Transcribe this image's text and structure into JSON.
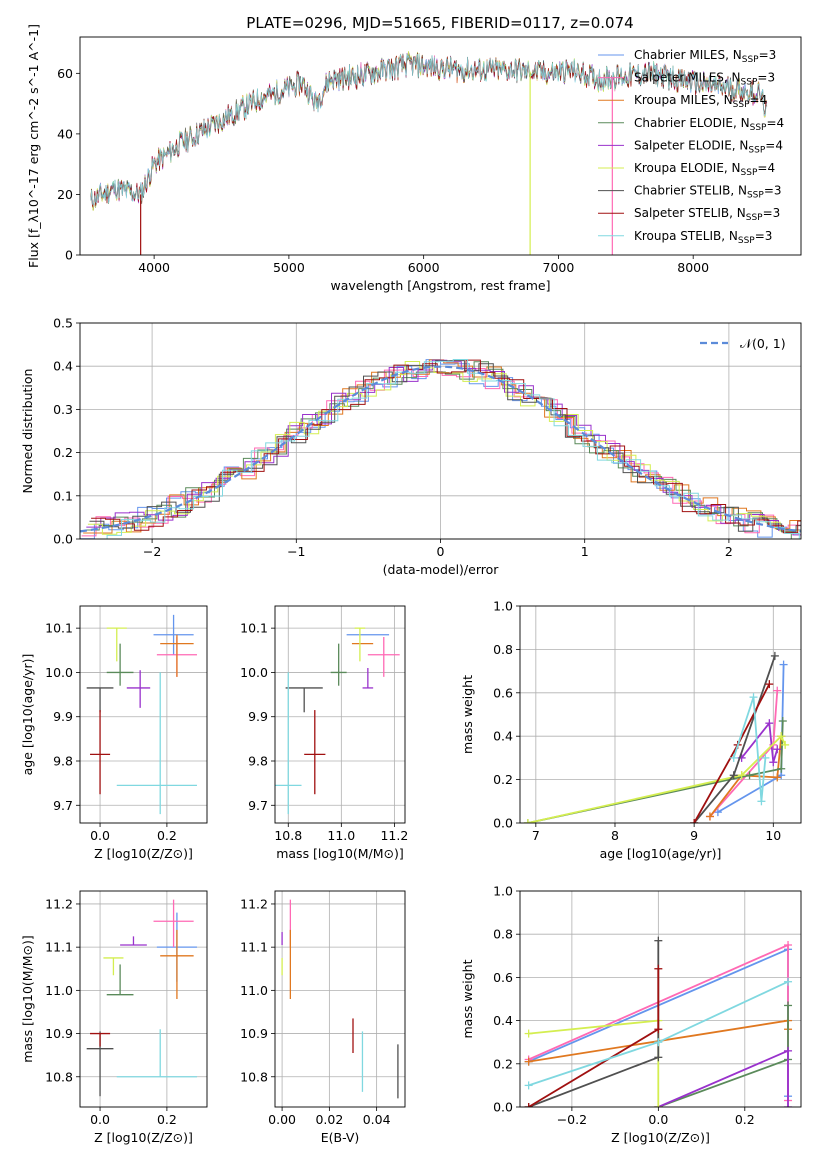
{
  "title": "PLATE=0296, MJD=51665, FIBERID=0117, z=0.074",
  "colors": {
    "chabrier_miles": "#6495ed",
    "salpeter_miles": "#ff69b4",
    "kroupa_miles": "#e07820",
    "chabrier_elodie": "#5a8a5a",
    "salpeter_elodie": "#9932cc",
    "kroupa_elodie": "#d4ee50",
    "chabrier_stelib": "#505050",
    "salpeter_stelib": "#a01010",
    "kroupa_stelib": "#80d8e0",
    "gaussian": "#5b8bd9"
  },
  "chart_data": [
    {
      "id": "spectrum",
      "type": "line",
      "xlabel": "wavelength [Angstrom, rest frame]",
      "ylabel": "Flux [f_λ10^-17 erg cm^-2 s^-1 A^-1]",
      "xlim": [
        3450,
        8800
      ],
      "ylim": [
        0,
        72
      ],
      "xticks": [
        4000,
        5000,
        6000,
        7000,
        8000
      ],
      "yticks": [
        0,
        20,
        40,
        60
      ],
      "grid": false,
      "legend_position": "top-right",
      "legend": [
        "Chabrier MILES, N_SSP=3",
        "Salpeter MILES, N_SSP=3",
        "Kroupa MILES, N_SSP=4",
        "Chabrier ELODIE, N_SSP=4",
        "Salpeter ELODIE, N_SSP=4",
        "Kroupa ELODIE, N_SSP=4",
        "Chabrier STELIB, N_SSP=3",
        "Salpeter STELIB, N_SSP=3",
        "Kroupa STELIB, N_SSP=3"
      ],
      "continuum": [
        [
          3530,
          18
        ],
        [
          3700,
          22
        ],
        [
          3900,
          20
        ],
        [
          4000,
          30
        ],
        [
          4200,
          37
        ],
        [
          4400,
          42
        ],
        [
          4600,
          47
        ],
        [
          4800,
          52
        ],
        [
          5000,
          55
        ],
        [
          5100,
          57
        ],
        [
          5200,
          50
        ],
        [
          5300,
          58
        ],
        [
          5500,
          59
        ],
        [
          5700,
          61
        ],
        [
          5900,
          63
        ],
        [
          6100,
          62
        ],
        [
          6300,
          61
        ],
        [
          6500,
          61
        ],
        [
          6700,
          61
        ],
        [
          6900,
          60
        ],
        [
          7100,
          61
        ],
        [
          7300,
          58
        ],
        [
          7500,
          59
        ],
        [
          7700,
          60
        ],
        [
          7900,
          58
        ],
        [
          8100,
          56
        ],
        [
          8300,
          55
        ],
        [
          8500,
          53
        ],
        [
          8550,
          46
        ]
      ],
      "dips": [
        {
          "x": 3900,
          "to": 0,
          "series": "salpeter_stelib"
        },
        {
          "x": 6790,
          "to": 0,
          "series": "kroupa_elodie"
        },
        {
          "x": 7400,
          "to": 0,
          "series": "salpeter_miles"
        }
      ]
    },
    {
      "id": "residual-histogram",
      "type": "histogram",
      "xlabel": "(data-model)/error",
      "ylabel": "Normed distribution",
      "xlim": [
        -2.5,
        2.5
      ],
      "ylim": [
        0,
        0.5
      ],
      "xticks": [
        -2,
        -1,
        0,
        1,
        2
      ],
      "yticks": [
        0.0,
        0.1,
        0.2,
        0.3,
        0.4,
        0.5
      ],
      "grid": true,
      "legend_position": "top-right",
      "legend": [
        "N(0,1)"
      ],
      "bin_width": 0.1,
      "gaussian": {
        "mean": 0,
        "sigma": 1
      }
    },
    {
      "id": "age-vs-Z",
      "type": "errorbar",
      "xlabel": "Z [log10(Z/Z⊙)]",
      "ylabel": "age  [log10(age/yr)]",
      "xlim": [
        -0.06,
        0.32
      ],
      "ylim": [
        9.66,
        10.15
      ],
      "xticks": [
        0.0,
        0.2
      ],
      "yticks": [
        9.7,
        9.8,
        9.9,
        10.0,
        10.1
      ],
      "grid": true,
      "points": [
        {
          "series": "chabrier_miles",
          "x": 0.22,
          "xerr": [
            0.06,
            0.06
          ],
          "y": 10.085,
          "yerr": [
            0.045,
            0.045
          ]
        },
        {
          "series": "salpeter_miles",
          "x": 0.23,
          "xerr": [
            0.06,
            0.06
          ],
          "y": 10.04,
          "yerr": [
            0.05,
            0.04
          ]
        },
        {
          "series": "kroupa_miles",
          "x": 0.23,
          "xerr": [
            0.05,
            0.05
          ],
          "y": 10.065,
          "yerr": [
            0.075,
            0.02
          ]
        },
        {
          "series": "chabrier_elodie",
          "x": 0.06,
          "xerr": [
            0.04,
            0.04
          ],
          "y": 10.0,
          "yerr": [
            0.03,
            0.065
          ]
        },
        {
          "series": "salpeter_elodie",
          "x": 0.12,
          "xerr": [
            0.04,
            0.03
          ],
          "y": 9.965,
          "yerr": [
            0.045,
            0.04
          ]
        },
        {
          "series": "kroupa_elodie",
          "x": 0.05,
          "xerr": [
            0.03,
            0.03
          ],
          "y": 10.1,
          "yerr": [
            0.075,
            0.0
          ]
        },
        {
          "series": "chabrier_stelib",
          "x": 0.0,
          "xerr": [
            0.04,
            0.04
          ],
          "y": 9.965,
          "yerr": [
            0.055,
            0.0
          ]
        },
        {
          "series": "salpeter_stelib",
          "x": 0.0,
          "xerr": [
            0.03,
            0.03
          ],
          "y": 9.815,
          "yerr": [
            0.09,
            0.1
          ]
        },
        {
          "series": "kroupa_stelib",
          "x": 0.18,
          "xerr": [
            0.13,
            0.11
          ],
          "y": 9.745,
          "yerr": [
            0.065,
            0.255
          ]
        }
      ]
    },
    {
      "id": "age-vs-mass",
      "type": "errorbar",
      "xlabel": "mass [log10(M/M⊙)]",
      "ylabel": "",
      "xlim": [
        10.75,
        11.24
      ],
      "ylim": [
        9.66,
        10.15
      ],
      "xticks": [
        10.8,
        11.0,
        11.2
      ],
      "yticks": [
        9.7,
        9.8,
        9.9,
        10.0,
        10.1
      ],
      "grid": true,
      "points": [
        {
          "series": "chabrier_miles",
          "x": 11.1,
          "xerr": [
            0.08,
            0.08
          ],
          "y": 10.085,
          "yerr": [
            0.0,
            0.0
          ]
        },
        {
          "series": "salpeter_miles",
          "x": 11.16,
          "xerr": [
            0.06,
            0.06
          ],
          "y": 10.04,
          "yerr": [
            0.05,
            0.04
          ]
        },
        {
          "series": "kroupa_miles",
          "x": 11.08,
          "xerr": [
            0.04,
            0.04
          ],
          "y": 10.065,
          "yerr": [
            0.0,
            0.0
          ]
        },
        {
          "series": "chabrier_elodie",
          "x": 10.99,
          "xerr": [
            0.03,
            0.03
          ],
          "y": 10.0,
          "yerr": [
            0.03,
            0.065
          ]
        },
        {
          "series": "salpeter_elodie",
          "x": 11.1,
          "xerr": [
            0.02,
            0.02
          ],
          "y": 9.965,
          "yerr": [
            0.0,
            0.045
          ]
        },
        {
          "series": "kroupa_elodie",
          "x": 11.07,
          "xerr": [
            0.02,
            0.02
          ],
          "y": 10.1,
          "yerr": [
            0.075,
            0.0
          ]
        },
        {
          "series": "chabrier_stelib",
          "x": 10.86,
          "xerr": [
            0.07,
            0.07
          ],
          "y": 9.965,
          "yerr": [
            0.055,
            0.0
          ]
        },
        {
          "series": "salpeter_stelib",
          "x": 10.9,
          "xerr": [
            0.04,
            0.04
          ],
          "y": 9.815,
          "yerr": [
            0.09,
            0.1
          ]
        },
        {
          "series": "kroupa_stelib",
          "x": 10.8,
          "xerr": [
            0.05,
            0.05
          ],
          "y": 9.745,
          "yerr": [
            0.065,
            0.255
          ]
        }
      ]
    },
    {
      "id": "mass-weight-vs-age",
      "type": "line",
      "xlabel": "age  [log10(age/yr)]",
      "ylabel": "mass weight",
      "xlim": [
        6.8,
        10.35
      ],
      "ylim": [
        0,
        1.0
      ],
      "xticks": [
        7,
        8,
        9,
        10
      ],
      "yticks": [
        0.0,
        0.2,
        0.4,
        0.6,
        0.8,
        1.0
      ],
      "grid": true,
      "series": [
        {
          "key": "chabrier_miles",
          "x": [
            9.3,
            10.1,
            10.13
          ],
          "y": [
            0.05,
            0.22,
            0.73
          ]
        },
        {
          "key": "salpeter_miles",
          "x": [
            9.2,
            10.0,
            10.05
          ],
          "y": [
            0.03,
            0.36,
            0.61
          ]
        },
        {
          "key": "kroupa_miles",
          "x": [
            9.2,
            9.6,
            10.05,
            10.1
          ],
          "y": [
            0.03,
            0.22,
            0.21,
            0.4
          ]
        },
        {
          "key": "chabrier_elodie",
          "x": [
            6.9,
            9.7,
            10.1,
            10.12
          ],
          "y": [
            0.0,
            0.22,
            0.25,
            0.47
          ]
        },
        {
          "key": "salpeter_elodie",
          "x": [
            9.6,
            9.95,
            10.0,
            10.05
          ],
          "y": [
            0.3,
            0.46,
            0.28,
            0.34
          ]
        },
        {
          "key": "kroupa_elodie",
          "x": [
            6.9,
            9.6,
            10.1,
            10.15
          ],
          "y": [
            0.0,
            0.22,
            0.4,
            0.36
          ]
        },
        {
          "key": "chabrier_stelib",
          "x": [
            9.0,
            9.5,
            10.02
          ],
          "y": [
            0.0,
            0.22,
            0.77
          ]
        },
        {
          "key": "salpeter_stelib",
          "x": [
            9.0,
            9.55,
            9.95
          ],
          "y": [
            0.0,
            0.36,
            0.64
          ]
        },
        {
          "key": "kroupa_stelib",
          "x": [
            9.5,
            9.75,
            9.85,
            9.9
          ],
          "y": [
            0.3,
            0.58,
            0.1,
            0.3
          ]
        }
      ]
    },
    {
      "id": "mass-vs-Z",
      "type": "errorbar",
      "xlabel": "Z [log10(Z/Z⊙)]",
      "ylabel": "mass [log10(M/M⊙)]",
      "xlim": [
        -0.06,
        0.32
      ],
      "ylim": [
        10.73,
        11.23
      ],
      "xticks": [
        0.0,
        0.2
      ],
      "yticks": [
        10.8,
        10.9,
        11.0,
        11.1,
        11.2
      ],
      "grid": true,
      "points": [
        {
          "series": "chabrier_miles",
          "x": 0.23,
          "xerr": [
            0.06,
            0.06
          ],
          "y": 11.1,
          "yerr": [
            0.08,
            0.08
          ]
        },
        {
          "series": "salpeter_miles",
          "x": 0.22,
          "xerr": [
            0.06,
            0.06
          ],
          "y": 11.16,
          "yerr": [
            0.06,
            0.05
          ]
        },
        {
          "series": "kroupa_miles",
          "x": 0.23,
          "xerr": [
            0.05,
            0.05
          ],
          "y": 11.08,
          "yerr": [
            0.1,
            0.06
          ]
        },
        {
          "series": "chabrier_elodie",
          "x": 0.06,
          "xerr": [
            0.04,
            0.04
          ],
          "y": 10.99,
          "yerr": [
            0.0,
            0.07
          ]
        },
        {
          "series": "salpeter_elodie",
          "x": 0.1,
          "xerr": [
            0.04,
            0.04
          ],
          "y": 11.105,
          "yerr": [
            0.0,
            0.02
          ]
        },
        {
          "series": "kroupa_elodie",
          "x": 0.04,
          "xerr": [
            0.03,
            0.03
          ],
          "y": 11.075,
          "yerr": [
            0.04,
            0.0
          ]
        },
        {
          "series": "chabrier_stelib",
          "x": 0.0,
          "xerr": [
            0.04,
            0.04
          ],
          "y": 10.865,
          "yerr": [
            0.11,
            0.04
          ]
        },
        {
          "series": "salpeter_stelib",
          "x": 0.0,
          "xerr": [
            0.03,
            0.03
          ],
          "y": 10.9,
          "yerr": [
            0.03,
            0.0
          ]
        },
        {
          "series": "kroupa_stelib",
          "x": 0.18,
          "xerr": [
            0.13,
            0.11
          ],
          "y": 10.8,
          "yerr": [
            0.0,
            0.11
          ]
        }
      ]
    },
    {
      "id": "mass-vs-EBV",
      "type": "errorbar",
      "xlabel": "E(B-V)",
      "ylabel": "",
      "xlim": [
        -0.003,
        0.052
      ],
      "ylim": [
        10.73,
        11.23
      ],
      "xticks": [
        0.0,
        0.02,
        0.04
      ],
      "yticks": [
        10.8,
        10.9,
        11.0,
        11.1,
        11.2
      ],
      "grid": true,
      "points": [
        {
          "series": "chabrier_miles",
          "x": 0.0,
          "xerr": [
            0,
            0
          ],
          "y": 11.1,
          "yerr": [
            0.0,
            0.0
          ]
        },
        {
          "series": "salpeter_miles",
          "x": 0.0035,
          "xerr": [
            0,
            0
          ],
          "y": 11.16,
          "yerr": [
            0.06,
            0.05
          ]
        },
        {
          "series": "kroupa_miles",
          "x": 0.0035,
          "xerr": [
            0,
            0
          ],
          "y": 11.08,
          "yerr": [
            0.1,
            0.06
          ]
        },
        {
          "series": "chabrier_elodie",
          "x": 0.0,
          "xerr": [
            0,
            0
          ],
          "y": 10.99,
          "yerr": [
            0.0,
            0.0
          ]
        },
        {
          "series": "salpeter_elodie",
          "x": 0.0,
          "xerr": [
            0,
            0
          ],
          "y": 11.105,
          "yerr": [
            0.0,
            0.03
          ]
        },
        {
          "series": "kroupa_elodie",
          "x": 0.0,
          "xerr": [
            0,
            0
          ],
          "y": 11.075,
          "yerr": [
            0.04,
            0.0
          ]
        },
        {
          "series": "chabrier_stelib",
          "x": 0.049,
          "xerr": [
            0,
            0
          ],
          "y": 10.81,
          "yerr": [
            0.06,
            0.065
          ]
        },
        {
          "series": "salpeter_stelib",
          "x": 0.03,
          "xerr": [
            0,
            0
          ],
          "y": 10.895,
          "yerr": [
            0.04,
            0.04
          ]
        },
        {
          "series": "kroupa_stelib",
          "x": 0.034,
          "xerr": [
            0,
            0
          ],
          "y": 10.835,
          "yerr": [
            0.07,
            0.07
          ]
        }
      ]
    },
    {
      "id": "mass-weight-vs-Z",
      "type": "line",
      "xlabel": "Z [log10(Z/Z⊙)]",
      "ylabel": "mass weight",
      "xlim": [
        -0.32,
        0.33
      ],
      "ylim": [
        0,
        1.0
      ],
      "xticks": [
        -0.2,
        0.0,
        0.2
      ],
      "yticks": [
        0.0,
        0.2,
        0.4,
        0.6,
        0.8,
        1.0
      ],
      "grid": true,
      "series": [
        {
          "key": "chabrier_miles",
          "x": [
            -0.3,
            0.3,
            0.3
          ],
          "y": [
            0.21,
            0.73,
            0.05
          ]
        },
        {
          "key": "salpeter_miles",
          "x": [
            -0.3,
            0.3,
            0.3
          ],
          "y": [
            0.22,
            0.75,
            0.03
          ]
        },
        {
          "key": "kroupa_miles",
          "x": [
            -0.3,
            0.3,
            0.3
          ],
          "y": [
            0.21,
            0.4,
            0.36
          ]
        },
        {
          "key": "chabrier_elodie",
          "x": [
            0.0,
            0.3,
            0.3
          ],
          "y": [
            0.0,
            0.22,
            0.47
          ]
        },
        {
          "key": "salpeter_elodie",
          "x": [
            0.0,
            0.3,
            0.3
          ],
          "y": [
            0.0,
            0.26,
            0.0
          ]
        },
        {
          "key": "kroupa_elodie",
          "x": [
            -0.3,
            0.0,
            0.0
          ],
          "y": [
            0.34,
            0.4,
            0.0
          ]
        },
        {
          "key": "chabrier_stelib",
          "x": [
            -0.3,
            0.0,
            0.0
          ],
          "y": [
            0.0,
            0.23,
            0.77
          ]
        },
        {
          "key": "salpeter_stelib",
          "x": [
            -0.3,
            0.0,
            0.0
          ],
          "y": [
            0.0,
            0.36,
            0.64
          ]
        },
        {
          "key": "kroupa_stelib",
          "x": [
            -0.3,
            0.0,
            0.3
          ],
          "y": [
            0.1,
            0.3,
            0.58
          ]
        }
      ]
    }
  ]
}
